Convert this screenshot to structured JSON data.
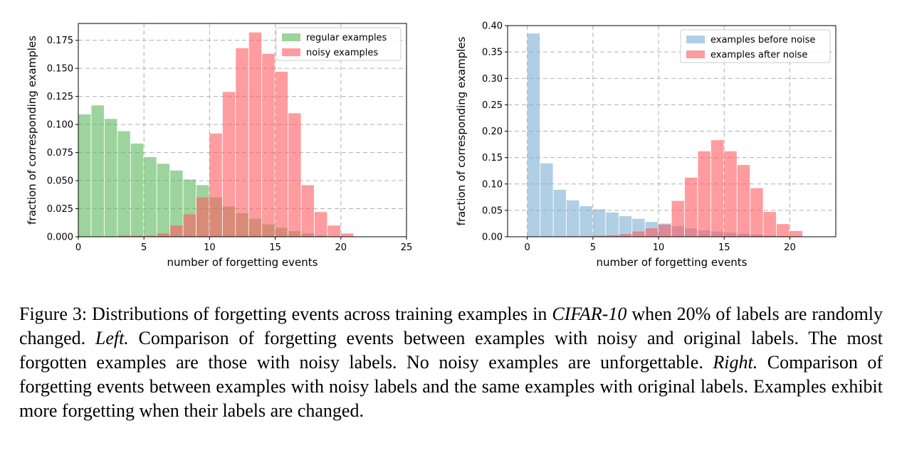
{
  "chart_data": [
    {
      "type": "bar",
      "xlabel": "number of forgetting events",
      "ylabel": "fraction of corresponding examples",
      "xlim": [
        0,
        25
      ],
      "ylim": [
        0,
        0.19
      ],
      "xticks": [
        0,
        5,
        10,
        15,
        20,
        25
      ],
      "yticks": [
        0.0,
        0.025,
        0.05,
        0.075,
        0.1,
        0.125,
        0.15,
        0.175
      ],
      "ytick_labels": [
        "0.000",
        "0.025",
        "0.050",
        "0.075",
        "0.100",
        "0.125",
        "0.150",
        "0.175"
      ],
      "grid": true,
      "legend_position": "top-right",
      "bin_width": 0.95,
      "series": [
        {
          "name": "regular examples",
          "color": "#5cb85c",
          "bin_start": 0,
          "values": [
            0.109,
            0.117,
            0.105,
            0.094,
            0.083,
            0.071,
            0.065,
            0.059,
            0.051,
            0.046,
            0.035,
            0.027,
            0.021,
            0.016,
            0.011,
            0.008,
            0.005,
            0.003,
            0.001,
            0.0
          ]
        },
        {
          "name": "noisy examples",
          "color": "#ff5a5f",
          "bin_start": 0,
          "values": [
            0.0,
            0.0,
            0.0,
            0.001,
            0.001,
            0.001,
            0.003,
            0.01,
            0.02,
            0.035,
            0.092,
            0.129,
            0.168,
            0.182,
            0.163,
            0.147,
            0.11,
            0.046,
            0.022,
            0.01,
            0.003
          ]
        }
      ]
    },
    {
      "type": "bar",
      "xlabel": "number of forgetting events",
      "ylabel": "fraction of corresponding examples",
      "xlim": [
        -1.5,
        23.5
      ],
      "ylim": [
        0,
        0.4
      ],
      "xticks": [
        0,
        5,
        10,
        15,
        20
      ],
      "yticks": [
        0.0,
        0.05,
        0.1,
        0.15,
        0.2,
        0.25,
        0.3,
        0.35,
        0.4
      ],
      "ytick_labels": [
        "0.00",
        "0.05",
        "0.10",
        "0.15",
        "0.20",
        "0.25",
        "0.30",
        "0.35",
        "0.40"
      ],
      "grid": true,
      "legend_position": "top-right",
      "bin_width": 0.95,
      "series": [
        {
          "name": "examples before noise",
          "color": "#7bafd4",
          "bin_start": 0,
          "values": [
            0.385,
            0.139,
            0.089,
            0.069,
            0.058,
            0.052,
            0.046,
            0.039,
            0.034,
            0.028,
            0.025,
            0.02,
            0.016,
            0.012,
            0.01,
            0.008,
            0.006,
            0.004,
            0.002,
            0.001
          ]
        },
        {
          "name": "examples after noise",
          "color": "#ff5a5f",
          "bin_start": 0,
          "values": [
            0.0,
            0.0,
            0.0,
            0.001,
            0.001,
            0.002,
            0.003,
            0.005,
            0.01,
            0.016,
            0.023,
            0.068,
            0.112,
            0.162,
            0.183,
            0.162,
            0.136,
            0.092,
            0.047,
            0.024,
            0.011
          ]
        }
      ]
    }
  ],
  "caption": {
    "figure_label": "Figure 3:",
    "part1": "Distributions of forgetting events across training examples in",
    "dataset": "CIFAR-10",
    "part2": "when 20% of labels are randomly changed.",
    "left_label": "Left.",
    "left_text": "Comparison of forgetting events between examples with noisy and original labels. The most forgotten examples are those with noisy labels. No noisy examples are unforgettable.",
    "right_label": "Right.",
    "right_text": "Comparison of forgetting events between examples with noisy labels and the same examples with original labels. Examples exhibit more forgetting when their labels are changed."
  }
}
